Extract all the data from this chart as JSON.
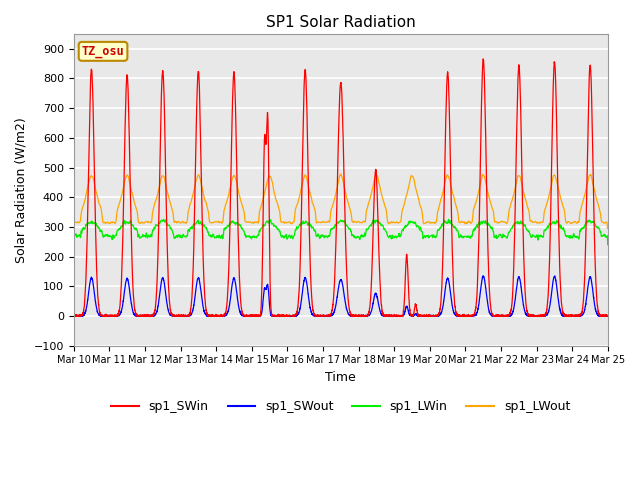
{
  "title": "SP1 Solar Radiation",
  "xlabel": "Time",
  "ylabel": "Solar Radiation (W/m2)",
  "ylim": [
    -100,
    950
  ],
  "xlim": [
    0,
    15
  ],
  "x_tick_labels": [
    "Mar 10",
    "Mar 11",
    "Mar 12",
    "Mar 13",
    "Mar 14",
    "Mar 15",
    "Mar 16",
    "Mar 17",
    "Mar 18",
    "Mar 19",
    "Mar 20",
    "Mar 21",
    "Mar 22",
    "Mar 23",
    "Mar 24",
    "Mar 25"
  ],
  "colors": {
    "sp1_SWin": "#ff0000",
    "sp1_SWout": "#0000ff",
    "sp1_LWin": "#00ee00",
    "sp1_LWout": "#ffa500"
  },
  "annotation_text": "TZ_osu",
  "annotation_color": "#cc0000",
  "annotation_bg": "#ffffcc",
  "annotation_border": "#bb8800",
  "bg_color": "#e8e8e8",
  "grid_color": "#ffffff",
  "n_days": 15,
  "pts_per_day": 288,
  "legend_labels": [
    "sp1_SWin",
    "sp1_SWout",
    "sp1_LWin",
    "sp1_LWout"
  ]
}
